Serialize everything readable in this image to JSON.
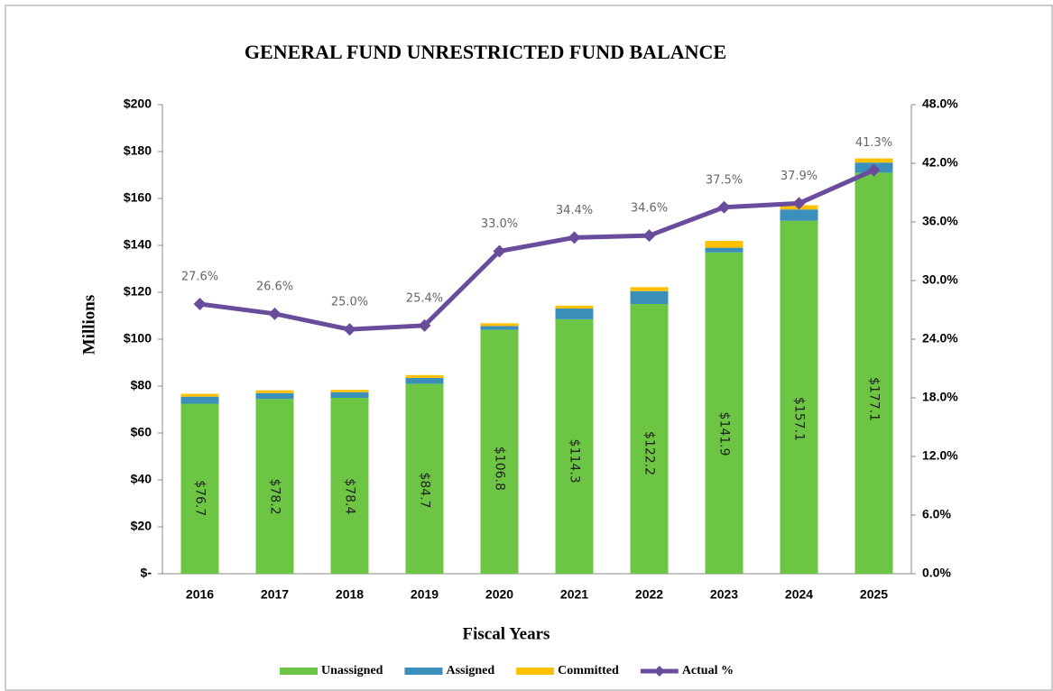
{
  "chart_data": {
    "type": "bar",
    "title": "GENERAL FUND UNRESTRICTED FUND BALANCE",
    "x_label": "Fiscal Years",
    "y_label": "Millions",
    "stacked": true,
    "categories": [
      "2016",
      "2017",
      "2018",
      "2019",
      "2020",
      "2021",
      "2022",
      "2023",
      "2024",
      "2025"
    ],
    "series": [
      {
        "name": "Unassigned",
        "color": "#6cc644",
        "values": [
          72.5,
          74.5,
          75.0,
          81.0,
          104.0,
          108.5,
          115.0,
          137.0,
          150.5,
          171.0
        ]
      },
      {
        "name": "Assigned",
        "color": "#3a8fbb",
        "values": [
          3.0,
          2.5,
          2.4,
          2.5,
          1.6,
          4.6,
          5.5,
          2.0,
          4.8,
          4.3
        ]
      },
      {
        "name": "Committed",
        "color": "#ffc000",
        "values": [
          1.2,
          1.2,
          1.0,
          1.2,
          1.2,
          1.2,
          1.7,
          2.9,
          1.8,
          1.8
        ]
      },
      {
        "name": "Actual %",
        "color": "#6a4c9c",
        "axis": "y2",
        "type": "line",
        "values": [
          27.6,
          26.6,
          25.0,
          25.4,
          33.0,
          34.4,
          34.6,
          37.5,
          37.9,
          41.3
        ],
        "value_labels": [
          "27.6%",
          "26.6%",
          "25.0%",
          "25.4%",
          "33.0%",
          "34.4%",
          "34.6%",
          "37.5%",
          "37.9%",
          "41.3%"
        ]
      }
    ],
    "totals": [
      76.7,
      78.2,
      78.4,
      84.7,
      106.8,
      114.3,
      122.2,
      141.9,
      157.1,
      177.1
    ],
    "total_labels": [
      "$76.7",
      "$78.2",
      "$78.4",
      "$84.7",
      "$106.8",
      "$114.3",
      "$122.2",
      "$141.9",
      "$157.1",
      "$177.1"
    ],
    "ylim": [
      0,
      200
    ],
    "yticks": [
      {
        "value": 0,
        "label": "$-"
      },
      {
        "value": 20,
        "label": "$20"
      },
      {
        "value": 40,
        "label": "$40"
      },
      {
        "value": 60,
        "label": "$60"
      },
      {
        "value": 80,
        "label": "$80"
      },
      {
        "value": 100,
        "label": "$100"
      },
      {
        "value": 120,
        "label": "$120"
      },
      {
        "value": 140,
        "label": "$140"
      },
      {
        "value": 160,
        "label": "$160"
      },
      {
        "value": 180,
        "label": "$180"
      },
      {
        "value": 200,
        "label": "$200"
      }
    ],
    "y2lim": [
      0,
      48
    ],
    "y2ticks": [
      {
        "value": 0,
        "label": "0.0%"
      },
      {
        "value": 6,
        "label": "6.0%"
      },
      {
        "value": 12,
        "label": "12.0%"
      },
      {
        "value": 18,
        "label": "18.0%"
      },
      {
        "value": 24,
        "label": "24.0%"
      },
      {
        "value": 30,
        "label": "30.0%"
      },
      {
        "value": 36,
        "label": "36.0%"
      },
      {
        "value": 42,
        "label": "42.0%"
      },
      {
        "value": 48,
        "label": "48.0%"
      }
    ],
    "legend": "bottom",
    "grid": false
  }
}
